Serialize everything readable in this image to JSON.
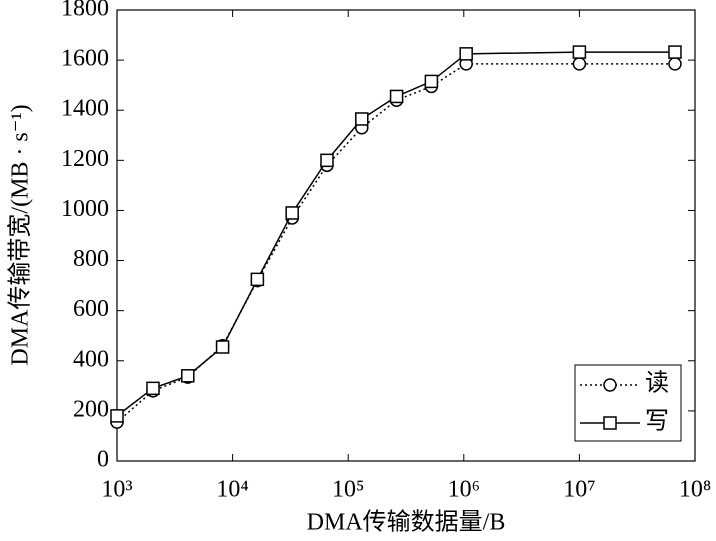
{
  "chart_data": {
    "type": "line",
    "x_label": "DMA传输数据量/B",
    "y_label": "DMA传输带宽/(MB · s⁻¹)",
    "x": [
      1000,
      2048,
      4096,
      8192,
      16384,
      32768,
      65536,
      131072,
      262144,
      524288,
      1048576,
      10000000,
      67108864
    ],
    "series": [
      {
        "name": "读",
        "color": "#000000",
        "dash": "dotted",
        "marker": "circle",
        "values": [
          155,
          280,
          335,
          460,
          720,
          970,
          1180,
          1330,
          1440,
          1495,
          1585,
          1585,
          1585
        ]
      },
      {
        "name": "写",
        "color": "#000000",
        "dash": "solid",
        "marker": "square",
        "values": [
          180,
          290,
          340,
          455,
          725,
          990,
          1200,
          1365,
          1455,
          1515,
          1625,
          1632,
          1632
        ]
      }
    ],
    "x_log": true,
    "xlim": [
      1000,
      100000000
    ],
    "xticks": [
      {
        "value": 1000,
        "label": "10³"
      },
      {
        "value": 10000,
        "label": "10⁴"
      },
      {
        "value": 100000,
        "label": "10⁵"
      },
      {
        "value": 1000000,
        "label": "10⁶"
      },
      {
        "value": 10000000,
        "label": "10⁷"
      },
      {
        "value": 100000000,
        "label": "10⁸"
      }
    ],
    "ylim": [
      0,
      1800
    ],
    "yticks": [
      0,
      200,
      400,
      600,
      800,
      1000,
      1200,
      1400,
      1600,
      1800
    ],
    "legend": "lower right"
  }
}
